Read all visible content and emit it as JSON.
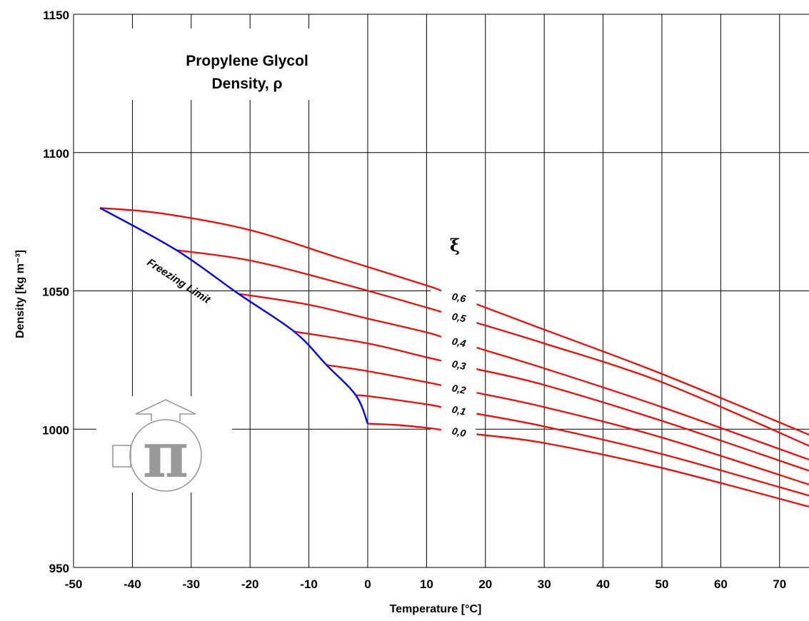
{
  "chart_data": {
    "type": "line",
    "title": "Propylene Glycol",
    "subtitle": "Density, ρ",
    "xlabel": "Temperature [°C]",
    "ylabel": "Density [kg m⁻³]",
    "xlim": [
      -50,
      75
    ],
    "ylim": [
      950,
      1150
    ],
    "x_ticks": [
      -50,
      -40,
      -30,
      -20,
      -10,
      0,
      10,
      20,
      30,
      40,
      50,
      60,
      70
    ],
    "y_ticks": [
      950,
      1000,
      1050,
      1100,
      1150
    ],
    "grid": true,
    "legend_title": "ξ",
    "annotations": [
      "Freezing Limit"
    ],
    "colors": {
      "series": "#ff0000",
      "freezing_limit": "#0000ff",
      "logo": "#999999"
    },
    "series": [
      {
        "name": "0,6",
        "label": "0,6",
        "x": [
          -45.5,
          -35,
          -20,
          -5,
          10,
          30,
          50,
          75
        ],
        "y": [
          1080,
          1078,
          1072,
          1062,
          1052,
          1036,
          1020,
          998
        ]
      },
      {
        "name": "0,5",
        "label": "0,5",
        "x": [
          -32.5,
          -20,
          -5,
          10,
          30,
          50,
          75
        ],
        "y": [
          1064.7,
          1061,
          1053,
          1044,
          1031,
          1017,
          994
        ]
      },
      {
        "name": "0,4",
        "label": "0,4",
        "x": [
          -22,
          -10,
          0,
          10,
          30,
          50,
          75
        ],
        "y": [
          1049,
          1045,
          1040,
          1035,
          1022,
          1008,
          989
        ]
      },
      {
        "name": "0,3",
        "label": "0,3",
        "x": [
          -12.5,
          0,
          10,
          30,
          50,
          75
        ],
        "y": [
          1035.3,
          1031,
          1026,
          1016,
          1003,
          985
        ]
      },
      {
        "name": "0,2",
        "label": "0,2",
        "x": [
          -7,
          0,
          10,
          30,
          50,
          75
        ],
        "y": [
          1023.2,
          1021,
          1017,
          1008,
          997,
          980
        ]
      },
      {
        "name": "0,1",
        "label": "0,1",
        "x": [
          -2,
          0,
          10,
          30,
          50,
          75
        ],
        "y": [
          1012.2,
          1012,
          1009,
          1001,
          991,
          976
        ]
      },
      {
        "name": "0,0",
        "label": "0,0",
        "x": [
          0,
          5,
          10,
          30,
          50,
          75
        ],
        "y": [
          1002,
          1001.5,
          1000.5,
          995,
          986,
          972
        ]
      }
    ],
    "freezing_limit": {
      "name": "Freezing Limit",
      "x": [
        -45.5,
        -32.5,
        -22,
        -12.5,
        -7,
        -2,
        0
      ],
      "y": [
        1080,
        1064.7,
        1049,
        1035.3,
        1023.2,
        1012.2,
        1002
      ]
    }
  }
}
